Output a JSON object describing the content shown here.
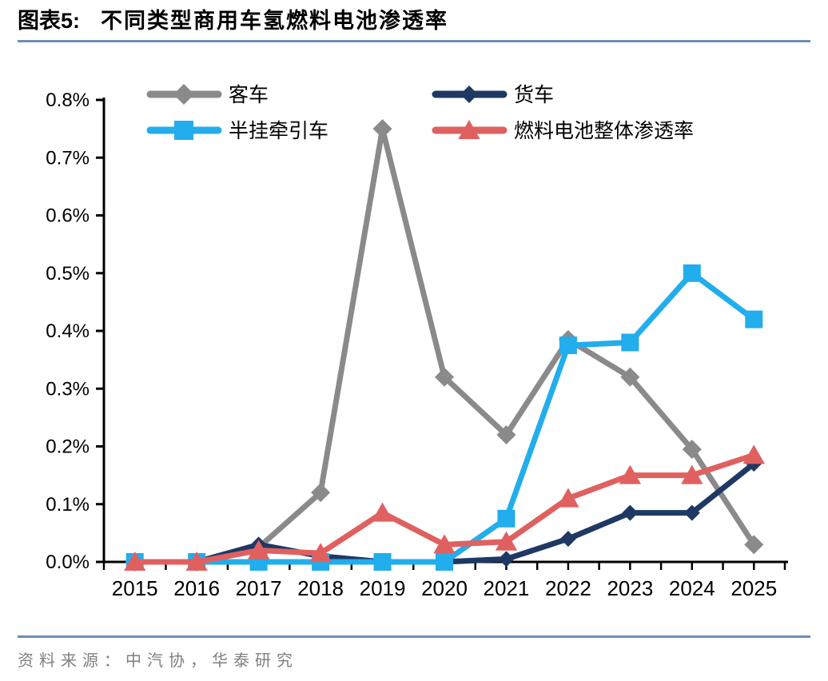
{
  "header": {
    "label": "图表5:",
    "title": "不同类型商用车氢燃料电池渗透率"
  },
  "footer": {
    "source": "资料来源：中汽协，华泰研究"
  },
  "colors": {
    "rule_blue": "#6E8DB6",
    "axis_black": "#000000",
    "tick_label": "#000000",
    "source_gray": "#7F7F7F",
    "background": "#FFFFFF"
  },
  "chart_data": {
    "type": "line",
    "title": "不同类型商用车氢燃料电池渗透率",
    "x": [
      "2015",
      "2016",
      "2017",
      "2018",
      "2019",
      "2020",
      "2021",
      "2022",
      "2023",
      "2024",
      "2025"
    ],
    "xlabel": "",
    "ylabel": "",
    "ylim": [
      0,
      0.8
    ],
    "ytick_step": 0.1,
    "ytick_labels": [
      "0.0%",
      "0.1%",
      "0.2%",
      "0.3%",
      "0.4%",
      "0.5%",
      "0.6%",
      "0.7%",
      "0.8%"
    ],
    "grid": false,
    "legend_position": "top-inside-2x2",
    "series": [
      {
        "name": "客车",
        "color": "#8A8A8A",
        "marker": "diamond",
        "marker_size": 12,
        "legend_marker_size": 13,
        "values": [
          0.0,
          0.0,
          0.025,
          0.12,
          0.75,
          0.32,
          0.22,
          0.385,
          0.32,
          0.195,
          0.03
        ]
      },
      {
        "name": "货车",
        "color": "#1F3864",
        "marker": "diamond",
        "marker_size": 10,
        "legend_marker_size": 11,
        "values": [
          0.0,
          0.0,
          0.03,
          0.01,
          0.0,
          0.0,
          0.005,
          0.04,
          0.085,
          0.085,
          0.17
        ]
      },
      {
        "name": "半挂牵引车",
        "color": "#22ADEC",
        "marker": "square",
        "marker_size": 11,
        "legend_marker_size": 12,
        "values": [
          0.0,
          0.0,
          0.0,
          0.0,
          0.0,
          0.0,
          0.075,
          0.375,
          0.38,
          0.5,
          0.42
        ]
      },
      {
        "name": "燃料电池整体渗透率",
        "color": "#E06060",
        "marker": "triangle",
        "marker_size": 13,
        "legend_marker_size": 13,
        "values": [
          0.0,
          0.0,
          0.02,
          0.015,
          0.085,
          0.03,
          0.035,
          0.11,
          0.15,
          0.15,
          0.185
        ]
      }
    ],
    "legend_order_rows": [
      [
        0,
        1
      ],
      [
        2,
        3
      ]
    ]
  }
}
